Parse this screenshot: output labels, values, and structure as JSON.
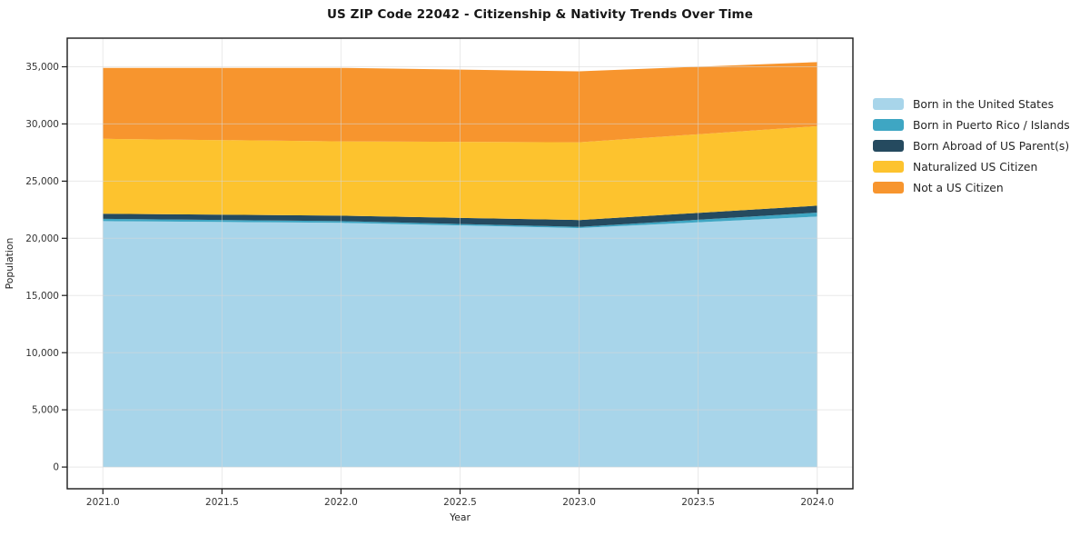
{
  "chart_data": {
    "type": "area",
    "stacked": true,
    "title": "US ZIP Code 22042 - Citizenship & Nativity Trends Over Time",
    "xlabel": "Year",
    "ylabel": "Population",
    "x": [
      2021,
      2022,
      2023,
      2024
    ],
    "series": [
      {
        "name": "Born in the United States",
        "color": "#a8d5ea",
        "values": [
          21500,
          21350,
          20900,
          21900
        ]
      },
      {
        "name": "Born in Puerto Rico / Islands",
        "color": "#3ea6c3",
        "values": [
          200,
          150,
          100,
          350
        ]
      },
      {
        "name": "Born Abroad of US Parent(s)",
        "color": "#254a5f",
        "values": [
          450,
          480,
          600,
          600
        ]
      },
      {
        "name": "Naturalized US Citizen",
        "color": "#fdc32e",
        "values": [
          6550,
          6500,
          6800,
          6950
        ]
      },
      {
        "name": "Not a US Citizen",
        "color": "#f7952e",
        "values": [
          6200,
          6420,
          6200,
          5600
        ]
      }
    ],
    "xticks": [
      2021.0,
      2021.5,
      2022.0,
      2022.5,
      2023.0,
      2023.5,
      2024.0
    ],
    "yticks": [
      0,
      5000,
      10000,
      15000,
      20000,
      25000,
      30000,
      35000
    ],
    "xlim": [
      2020.85,
      2024.15
    ],
    "ylim": [
      -1900,
      37500
    ],
    "grid": true,
    "legend_position": "right-outside",
    "axis_color": "#1a1a1a",
    "grid_color": "#d9d9d9",
    "tick_label_color": "#333333"
  }
}
